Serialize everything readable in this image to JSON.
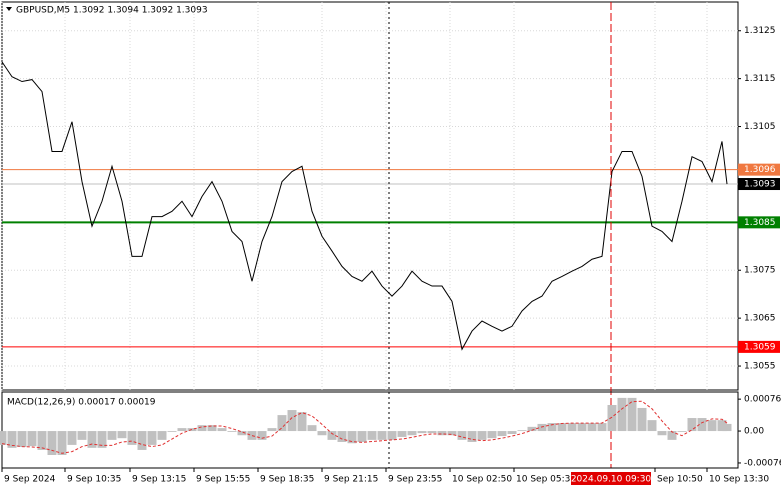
{
  "chart_data": [
    {
      "type": "line",
      "title": "GBPUSD,M5  1.3092 1.3094 1.3092 1.3093",
      "color": "#000000",
      "x": [
        0,
        1,
        2,
        3,
        4,
        5,
        6,
        7,
        8,
        9,
        10,
        11,
        12,
        13,
        14,
        15,
        16,
        17,
        18,
        19,
        20,
        21,
        22,
        23,
        24,
        25,
        26,
        27,
        28,
        29,
        30,
        31,
        32,
        33,
        34,
        35,
        36,
        37,
        38,
        39,
        40,
        41,
        42,
        43,
        44,
        45,
        46,
        47,
        48,
        49,
        50,
        51,
        52,
        53,
        54,
        55,
        56,
        57,
        58,
        59,
        60,
        61,
        62,
        63,
        64,
        65,
        66,
        67,
        68,
        69,
        70,
        71,
        72,
        72.5
      ],
      "values": [
        1.31185,
        1.31154,
        1.31144,
        1.31148,
        1.31123,
        1.30998,
        1.30998,
        1.3106,
        1.30935,
        1.30842,
        1.30894,
        1.30967,
        1.30894,
        1.30779,
        1.30779,
        1.30862,
        1.30862,
        1.30873,
        1.30894,
        1.30862,
        1.30904,
        1.30935,
        1.30894,
        1.30831,
        1.3081,
        1.30727,
        1.3081,
        1.30862,
        1.30935,
        1.30956,
        1.30967,
        1.30873,
        1.30821,
        1.3079,
        1.30758,
        1.30737,
        1.30727,
        1.30748,
        1.30717,
        1.30696,
        1.30717,
        1.30748,
        1.30727,
        1.30717,
        1.30717,
        1.30685,
        1.30585,
        1.30623,
        1.30644,
        1.30633,
        1.30623,
        1.30633,
        1.30665,
        1.30685,
        1.30696,
        1.30727,
        1.30737,
        1.30748,
        1.30758,
        1.30773,
        1.30779,
        1.30956,
        1.30998,
        1.30998,
        1.30946,
        1.30842,
        1.30831,
        1.3081,
        1.30894,
        1.30987,
        1.30977,
        1.30935,
        1.31019,
        1.3093
      ],
      "xlim": [
        0,
        73.6
      ],
      "ylim": [
        1.305,
        1.3131
      ],
      "yticks": [
        1.3055,
        1.3065,
        1.3075,
        1.3105,
        1.3115,
        1.3125
      ],
      "xticks": [
        {
          "value": 0,
          "label": "9 Sep 2024"
        },
        {
          "value": 6.3,
          "label": "9 Sep 10:35"
        },
        {
          "value": 12.8,
          "label": "9 Sep 13:15"
        },
        {
          "value": 19.2,
          "label": "9 Sep 15:55"
        },
        {
          "value": 25.6,
          "label": "9 Sep 18:35"
        },
        {
          "value": 32,
          "label": "9 Sep 21:15"
        },
        {
          "value": 38.4,
          "label": "9 Sep 23:55"
        },
        {
          "value": 44.8,
          "label": "10 Sep 02:50"
        },
        {
          "value": 51.2,
          "label": "10 Sep 05:30"
        },
        {
          "value": 65.3,
          "label": "Sep 10:50"
        },
        {
          "value": 70.5,
          "label": "10 Sep 13:30"
        }
      ],
      "grid": true,
      "levels": [
        {
          "value": 1.3096,
          "color": "#f07840"
        },
        {
          "value": 1.3085,
          "color": "#008000"
        },
        {
          "value": 1.3059,
          "color": "#ff0000"
        },
        {
          "value": 1.3093,
          "color": "#000000"
        }
      ],
      "vlines": [
        {
          "x": 38.7,
          "color": "#000000"
        }
      ],
      "cursor": {
        "x": 60.9,
        "label": "2024.09.10 09:30",
        "color": "#e00000"
      }
    },
    {
      "type": "bar",
      "title": "MACD(12,26,9) 0.00017 0.00019",
      "x": [
        0,
        1,
        2,
        3,
        4,
        5,
        6,
        7,
        8,
        9,
        10,
        11,
        12,
        13,
        14,
        15,
        16,
        17,
        18,
        19,
        20,
        21,
        22,
        23,
        24,
        25,
        26,
        27,
        28,
        29,
        30,
        31,
        32,
        33,
        34,
        35,
        36,
        37,
        38,
        39,
        40,
        41,
        42,
        43,
        44,
        45,
        46,
        47,
        48,
        49,
        50,
        51,
        52,
        53,
        54,
        55,
        56,
        57,
        58,
        59,
        60,
        61,
        62,
        63,
        64,
        65,
        66,
        67,
        68,
        69,
        70,
        71,
        72,
        72.5
      ],
      "series": [
        {
          "color": "#c0c0c0",
          "values": [
            -0.00033,
            -0.0004,
            -0.00038,
            -0.00036,
            -0.00045,
            -0.00057,
            -0.00057,
            -0.00033,
            -0.00021,
            -0.0004,
            -0.0004,
            -0.00021,
            -0.00017,
            -0.00033,
            -0.00045,
            -0.00033,
            -0.00021,
            -2e-05,
            7e-05,
            7e-05,
            0.00014,
            0.00014,
            7e-05,
            -2e-05,
            -0.0001,
            -0.00021,
            -0.00021,
            7e-05,
            0.00038,
            0.0005,
            0.00045,
            0.00014,
            -0.0001,
            -0.00021,
            -0.00026,
            -0.00029,
            -0.00026,
            -0.00021,
            -0.00021,
            -0.00021,
            -0.00014,
            -0.0001,
            -5e-05,
            -5e-05,
            -0.0001,
            -0.0001,
            -0.00021,
            -0.00026,
            -0.00021,
            -0.00017,
            -0.00012,
            -7e-05,
            2e-05,
            0.0001,
            0.00017,
            0.00019,
            0.00019,
            0.00019,
            0.00019,
            0.00019,
            0.00019,
            0.00062,
            0.00079,
            0.00079,
            0.00055,
            0.00026,
            -0.0001,
            -0.00021,
            -2e-05,
            0.00031,
            0.00031,
            0.00026,
            0.00026,
            0.00017
          ]
        },
        {
          "type": "line",
          "color": "#e03030",
          "values": [
            -0.0003,
            -0.00034,
            -0.00037,
            -0.00038,
            -0.0004,
            -0.00046,
            -0.00053,
            -0.00049,
            -0.00037,
            -0.00031,
            -0.00034,
            -0.00034,
            -0.00026,
            -0.00024,
            -0.00032,
            -0.00037,
            -0.00033,
            -0.00019,
            -5e-05,
            4e-05,
            0.0001,
            0.00012,
            0.00012,
            6e-05,
            -2e-05,
            -0.00011,
            -0.00017,
            -0.00012,
            8e-05,
            0.00032,
            0.00044,
            0.00036,
            0.00016,
            -6e-05,
            -0.00019,
            -0.00025,
            -0.00027,
            -0.00025,
            -0.00023,
            -0.00021,
            -0.00019,
            -0.00015,
            -0.0001,
            -7e-05,
            -7e-05,
            -8e-05,
            -0.00014,
            -0.0002,
            -0.00023,
            -0.00021,
            -0.00017,
            -0.00012,
            -6e-05,
            2e-05,
            0.0001,
            0.00015,
            0.00018,
            0.00019,
            0.00019,
            0.00019,
            0.00019,
            0.00033,
            0.00053,
            0.0007,
            0.00071,
            0.00053,
            0.00024,
            -2e-05,
            -0.00011,
            3e-05,
            0.0002,
            0.00029,
            0.00028,
            0.00019
          ]
        }
      ],
      "xlim": [
        0,
        73.6
      ],
      "ylim": [
        -0.00088,
        0.00093
      ],
      "yticks": [
        0.00076,
        {
          "value": 0,
          "label": "0.00"
        },
        -0.00076
      ]
    }
  ]
}
